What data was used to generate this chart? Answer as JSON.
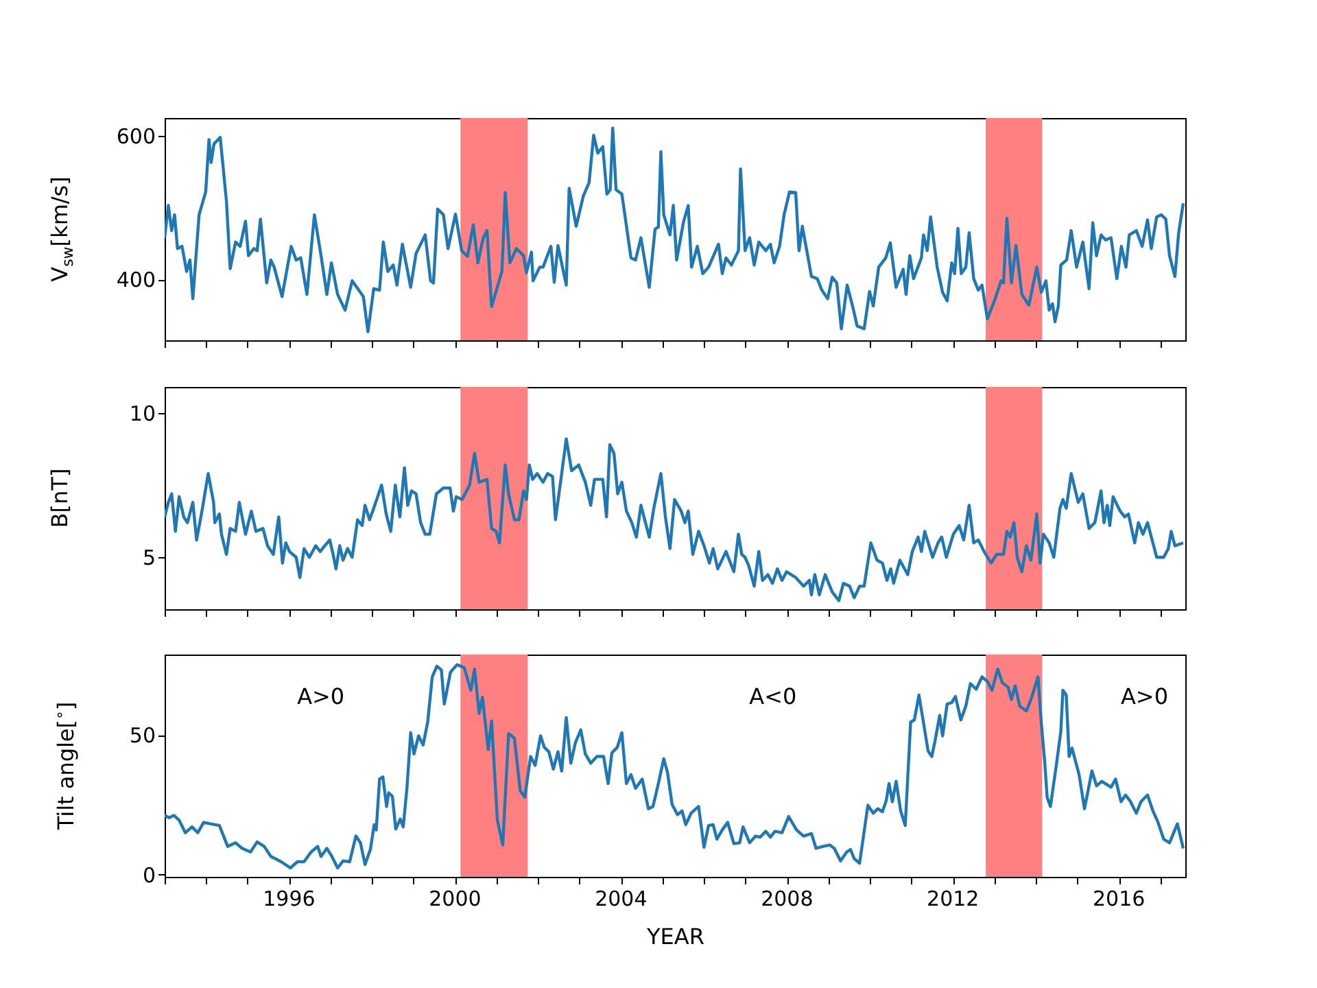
{
  "chart_data": [
    {
      "type": "line",
      "ylabel": "V$_{sw}$[km/s]",
      "xlim": [
        1993,
        2017.6
      ],
      "ylim": [
        315,
        625
      ],
      "yticks": [
        400,
        600
      ],
      "tick_labels": "y",
      "xticks": [
        {
          "value": 1993,
          "label": null
        },
        {
          "value": 1994,
          "label": null
        },
        {
          "value": 1995,
          "label": null
        },
        {
          "value": 1996,
          "label": null
        },
        {
          "value": 1997,
          "label": null
        },
        {
          "value": 1998,
          "label": null
        },
        {
          "value": 1999,
          "label": null
        },
        {
          "value": 2000,
          "label": null
        },
        {
          "value": 2001,
          "label": null
        },
        {
          "value": 2002,
          "label": null
        },
        {
          "value": 2003,
          "label": null
        },
        {
          "value": 2004,
          "label": null
        },
        {
          "value": 2005,
          "label": null
        },
        {
          "value": 2006,
          "label": null
        },
        {
          "value": 2007,
          "label": null
        },
        {
          "value": 2008,
          "label": null
        },
        {
          "value": 2009,
          "label": null
        },
        {
          "value": 2010,
          "label": null
        },
        {
          "value": 2011,
          "label": null
        },
        {
          "value": 2012,
          "label": null
        },
        {
          "value": 2013,
          "label": null
        },
        {
          "value": 2014,
          "label": null
        },
        {
          "value": 2015,
          "label": null
        },
        {
          "value": 2016,
          "label": null
        },
        {
          "value": 2017,
          "label": null
        }
      ],
      "bands": [
        {
          "axis": "x",
          "from": 2000.13,
          "to": 2001.75,
          "color": "#ff8080"
        },
        {
          "axis": "x",
          "from": 2012.79,
          "to": 2014.15,
          "color": "#ff8080"
        }
      ],
      "series": [
        {
          "color": "#1f77b4",
          "x": [
            1993.0,
            1993.09,
            1993.17,
            1993.24,
            1993.31,
            1993.42,
            1993.53,
            1993.61,
            1993.68,
            1993.83,
            1993.99,
            1994.07,
            1994.12,
            1994.19,
            1994.34,
            1994.49,
            1994.58,
            1994.71,
            1994.82,
            1994.95,
            1995.02,
            1995.15,
            1995.23,
            1995.31,
            1995.46,
            1995.56,
            1995.64,
            1995.83,
            1996.05,
            1996.17,
            1996.28,
            1996.43,
            1996.61,
            1996.77,
            1996.91,
            1997.02,
            1997.17,
            1997.35,
            1997.52,
            1997.79,
            1997.9,
            1998.04,
            1998.18,
            1998.27,
            1998.38,
            1998.51,
            1998.6,
            1998.73,
            1998.93,
            1999.06,
            1999.28,
            1999.41,
            1999.48,
            1999.58,
            1999.72,
            1999.83,
            2000.01,
            2000.16,
            2000.3,
            2000.44,
            2000.55,
            2000.68,
            2000.77,
            2000.88,
            2001.13,
            2001.21,
            2001.32,
            2001.48,
            2001.65,
            2001.72,
            2001.84,
            2001.88,
            2002.04,
            2002.12,
            2002.31,
            2002.39,
            2002.48,
            2002.68,
            2002.75,
            2002.92,
            2003.09,
            2003.23,
            2003.34,
            2003.44,
            2003.56,
            2003.66,
            2003.74,
            2003.8,
            2003.88,
            2004.02,
            2004.24,
            2004.35,
            2004.48,
            2004.68,
            2004.82,
            2004.9,
            2004.96,
            2005.03,
            2005.18,
            2005.26,
            2005.34,
            2005.51,
            2005.62,
            2005.7,
            2005.84,
            2005.97,
            2006.11,
            2006.35,
            2006.44,
            2006.53,
            2006.66,
            2006.83,
            2006.88,
            2006.99,
            2007.1,
            2007.21,
            2007.32,
            2007.49,
            2007.6,
            2007.69,
            2007.82,
            2007.93,
            2008.06,
            2008.21,
            2008.29,
            2008.37,
            2008.59,
            2008.73,
            2008.84,
            2008.98,
            2009.09,
            2009.2,
            2009.31,
            2009.45,
            2009.58,
            2009.69,
            2009.86,
            2009.99,
            2010.08,
            2010.21,
            2010.38,
            2010.49,
            2010.63,
            2010.8,
            2010.87,
            2010.96,
            2011.05,
            2011.24,
            2011.29,
            2011.38,
            2011.46,
            2011.62,
            2011.75,
            2011.86,
            2011.97,
            2012.04,
            2012.12,
            2012.2,
            2012.31,
            2012.39,
            2012.5,
            2012.61,
            2012.7,
            2012.83,
            2013.0,
            2013.16,
            2013.22,
            2013.3,
            2013.41,
            2013.52,
            2013.66,
            2013.83,
            2014.02,
            2014.13,
            2014.24,
            2014.32,
            2014.4,
            2014.46,
            2014.54,
            2014.6,
            2014.74,
            2014.85,
            2014.98,
            2015.13,
            2015.28,
            2015.37,
            2015.46,
            2015.57,
            2015.68,
            2015.81,
            2015.95,
            2016.06,
            2016.17,
            2016.25,
            2016.42,
            2016.56,
            2016.69,
            2016.78,
            2016.91,
            2017.02,
            2017.13,
            2017.22,
            2017.35,
            2017.44,
            2017.55
          ],
          "values": [
            458,
            503,
            468,
            490,
            443,
            446,
            411,
            427,
            373,
            490,
            522,
            595,
            563,
            589,
            598,
            509,
            415,
            452,
            446,
            481,
            433,
            443,
            440,
            484,
            395,
            427,
            417,
            376,
            446,
            427,
            430,
            379,
            490,
            433,
            379,
            423,
            379,
            357,
            398,
            376,
            327,
            387,
            385,
            452,
            411,
            420,
            392,
            449,
            389,
            436,
            462,
            398,
            395,
            498,
            490,
            443,
            491,
            440,
            432,
            476,
            423,
            458,
            468,
            362,
            411,
            521,
            423,
            443,
            433,
            409,
            438,
            398,
            417,
            417,
            446,
            396,
            447,
            392,
            527,
            474,
            516,
            535,
            601,
            576,
            585,
            519,
            525,
            611,
            525,
            519,
            430,
            427,
            458,
            389,
            470,
            473,
            578,
            490,
            462,
            503,
            427,
            481,
            503,
            417,
            446,
            408,
            417,
            449,
            408,
            430,
            420,
            440,
            554,
            440,
            458,
            420,
            452,
            440,
            449,
            423,
            446,
            490,
            522,
            521,
            440,
            474,
            404,
            401,
            385,
            373,
            403,
            395,
            331,
            392,
            363,
            335,
            331,
            383,
            363,
            417,
            430,
            451,
            389,
            414,
            379,
            433,
            401,
            430,
            462,
            440,
            487,
            417,
            382,
            370,
            423,
            408,
            471,
            408,
            417,
            465,
            401,
            385,
            392,
            345,
            370,
            398,
            395,
            485,
            395,
            447,
            379,
            364,
            417,
            382,
            398,
            357,
            366,
            341,
            363,
            420,
            427,
            468,
            417,
            452,
            387,
            479,
            433,
            462,
            455,
            458,
            401,
            446,
            417,
            462,
            468,
            446,
            483,
            443,
            487,
            490,
            484,
            433,
            404,
            465,
            506
          ]
        }
      ]
    },
    {
      "type": "line",
      "ylabel": "B[nT]",
      "xlim": [
        1993,
        2017.6
      ],
      "ylim": [
        3.2,
        10.9
      ],
      "yticks": [
        5,
        10
      ],
      "tick_labels": "y",
      "xticks": [
        {
          "value": 1993,
          "label": null
        },
        {
          "value": 1994,
          "label": null
        },
        {
          "value": 1995,
          "label": null
        },
        {
          "value": 1996,
          "label": null
        },
        {
          "value": 1997,
          "label": null
        },
        {
          "value": 1998,
          "label": null
        },
        {
          "value": 1999,
          "label": null
        },
        {
          "value": 2000,
          "label": null
        },
        {
          "value": 2001,
          "label": null
        },
        {
          "value": 2002,
          "label": null
        },
        {
          "value": 2003,
          "label": null
        },
        {
          "value": 2004,
          "label": null
        },
        {
          "value": 2005,
          "label": null
        },
        {
          "value": 2006,
          "label": null
        },
        {
          "value": 2007,
          "label": null
        },
        {
          "value": 2008,
          "label": null
        },
        {
          "value": 2009,
          "label": null
        },
        {
          "value": 2010,
          "label": null
        },
        {
          "value": 2011,
          "label": null
        },
        {
          "value": 2012,
          "label": null
        },
        {
          "value": 2013,
          "label": null
        },
        {
          "value": 2014,
          "label": null
        },
        {
          "value": 2015,
          "label": null
        },
        {
          "value": 2016,
          "label": null
        },
        {
          "value": 2017,
          "label": null
        }
      ],
      "bands": [
        {
          "axis": "x",
          "from": 2000.13,
          "to": 2001.75,
          "color": "#ff8080"
        },
        {
          "axis": "x",
          "from": 2012.79,
          "to": 2014.15,
          "color": "#ff8080"
        }
      ],
      "series": [
        {
          "color": "#1f77b4",
          "x": [
            1993.0,
            1993.09,
            1993.17,
            1993.26,
            1993.35,
            1993.46,
            1993.55,
            1993.68,
            1993.77,
            1993.9,
            1994.05,
            1994.18,
            1994.21,
            1994.32,
            1994.37,
            1994.49,
            1994.58,
            1994.71,
            1994.8,
            1994.95,
            1995.09,
            1995.2,
            1995.37,
            1995.48,
            1995.62,
            1995.75,
            1995.84,
            1995.92,
            1996.01,
            1996.17,
            1996.26,
            1996.36,
            1996.49,
            1996.64,
            1996.75,
            1996.86,
            1996.98,
            1997.06,
            1997.13,
            1997.22,
            1997.3,
            1997.41,
            1997.52,
            1997.65,
            1997.76,
            1997.83,
            1997.94,
            1998.04,
            1998.23,
            1998.34,
            1998.45,
            1998.56,
            1998.67,
            1998.78,
            1998.86,
            1998.95,
            1999.06,
            1999.17,
            1999.28,
            1999.39,
            1999.55,
            1999.72,
            1999.88,
            1999.96,
            2000.03,
            2000.17,
            2000.35,
            2000.47,
            2000.58,
            2000.77,
            2000.88,
            2000.99,
            2001.07,
            2001.21,
            2001.29,
            2001.43,
            2001.54,
            2001.65,
            2001.72,
            2001.79,
            2001.87,
            2001.98,
            2002.12,
            2002.23,
            2002.35,
            2002.42,
            2002.57,
            2002.68,
            2002.81,
            2002.98,
            2003.14,
            2003.27,
            2003.36,
            2003.56,
            2003.65,
            2003.73,
            2003.83,
            2003.92,
            2004.02,
            2004.13,
            2004.26,
            2004.37,
            2004.48,
            2004.68,
            2004.79,
            2004.96,
            2005.07,
            2005.18,
            2005.29,
            2005.45,
            2005.54,
            2005.62,
            2005.73,
            2005.87,
            2006.0,
            2006.13,
            2006.22,
            2006.33,
            2006.53,
            2006.72,
            2006.83,
            2006.91,
            2006.99,
            2007.08,
            2007.21,
            2007.32,
            2007.41,
            2007.54,
            2007.65,
            2007.77,
            2007.88,
            2007.99,
            2008.21,
            2008.4,
            2008.54,
            2008.59,
            2008.67,
            2008.78,
            2008.92,
            2009.09,
            2009.25,
            2009.36,
            2009.51,
            2009.62,
            2009.75,
            2009.86,
            2010.02,
            2010.17,
            2010.3,
            2010.41,
            2010.5,
            2010.57,
            2010.72,
            2010.91,
            2011.02,
            2011.16,
            2011.24,
            2011.32,
            2011.51,
            2011.64,
            2011.73,
            2011.84,
            2012.01,
            2012.15,
            2012.26,
            2012.39,
            2012.5,
            2012.61,
            2012.75,
            2012.92,
            2013.05,
            2013.22,
            2013.3,
            2013.38,
            2013.47,
            2013.55,
            2013.66,
            2013.77,
            2013.88,
            2014.02,
            2014.1,
            2014.18,
            2014.32,
            2014.43,
            2014.58,
            2014.65,
            2014.73,
            2014.85,
            2015.02,
            2015.13,
            2015.28,
            2015.42,
            2015.57,
            2015.64,
            2015.72,
            2015.78,
            2015.86,
            2016.03,
            2016.14,
            2016.23,
            2016.38,
            2016.47,
            2016.58,
            2016.69,
            2016.91,
            2017.08,
            2017.19,
            2017.26,
            2017.35,
            2017.55
          ],
          "values": [
            6.4,
            6.9,
            7.2,
            5.9,
            7.1,
            6.4,
            6.2,
            6.9,
            5.6,
            6.6,
            7.9,
            6.9,
            6.2,
            6.5,
            5.8,
            5.1,
            6.0,
            5.9,
            6.9,
            5.8,
            6.6,
            5.9,
            6.0,
            5.4,
            5.1,
            6.4,
            4.8,
            5.5,
            5.2,
            5.0,
            4.3,
            5.3,
            5.0,
            5.4,
            5.2,
            5.4,
            5.6,
            5.1,
            4.6,
            5.4,
            4.9,
            5.3,
            5.0,
            6.3,
            6.1,
            6.8,
            6.3,
            6.7,
            7.5,
            6.5,
            5.9,
            7.5,
            6.4,
            8.1,
            6.8,
            7.3,
            7.2,
            6.2,
            5.8,
            5.8,
            7.2,
            7.4,
            7.4,
            6.6,
            7.1,
            7.0,
            7.5,
            8.6,
            7.6,
            7.7,
            6.0,
            5.9,
            5.5,
            8.2,
            7.2,
            6.3,
            6.3,
            7.3,
            7.0,
            8.2,
            7.7,
            7.9,
            7.6,
            7.9,
            7.8,
            6.3,
            7.9,
            9.1,
            8.0,
            8.2,
            7.6,
            6.8,
            7.7,
            7.7,
            6.4,
            8.9,
            8.6,
            7.2,
            7.6,
            6.6,
            6.2,
            5.7,
            6.8,
            5.7,
            6.7,
            7.9,
            6.4,
            5.3,
            7.0,
            6.6,
            6.2,
            6.6,
            5.1,
            5.9,
            5.4,
            4.8,
            5.3,
            4.6,
            5.2,
            4.5,
            5.8,
            5.1,
            5.0,
            4.7,
            4.0,
            5.2,
            4.2,
            4.4,
            4.1,
            4.6,
            4.2,
            4.5,
            4.3,
            4.0,
            4.2,
            3.7,
            4.4,
            3.7,
            4.4,
            3.8,
            3.5,
            4.1,
            4.0,
            3.6,
            4.0,
            4.0,
            5.5,
            4.9,
            4.8,
            4.2,
            4.6,
            4.1,
            4.9,
            4.4,
            5.2,
            5.7,
            5.2,
            5.9,
            5.0,
            5.5,
            5.7,
            5.0,
            5.8,
            6.1,
            5.6,
            6.8,
            5.5,
            5.6,
            5.2,
            4.8,
            5.1,
            5.1,
            5.9,
            5.7,
            6.2,
            5.0,
            4.5,
            5.4,
            4.9,
            6.5,
            4.8,
            5.8,
            5.5,
            5.0,
            6.7,
            7.0,
            6.7,
            7.9,
            6.9,
            7.2,
            6.0,
            6.2,
            7.3,
            6.2,
            6.8,
            6.1,
            7.1,
            6.6,
            6.4,
            6.5,
            5.5,
            6.2,
            5.8,
            6.2,
            5.0,
            5.0,
            5.3,
            5.9,
            5.4,
            5.5
          ]
        }
      ]
    },
    {
      "type": "line",
      "ylabel": "Tilt angle[$^{∘}$]",
      "xlabel": "YEAR",
      "xlim": [
        1993,
        2017.6
      ],
      "ylim": [
        -0.8,
        78.8
      ],
      "yticks": [
        0,
        50
      ],
      "xticks": [
        {
          "value": 1993,
          "label": null
        },
        {
          "value": 1994,
          "label": null
        },
        {
          "value": 1995,
          "label": null
        },
        1996,
        {
          "value": 1997,
          "label": null
        },
        {
          "value": 1998,
          "label": null
        },
        {
          "value": 1999,
          "label": null
        },
        2000,
        {
          "value": 2001,
          "label": null
        },
        {
          "value": 2002,
          "label": null
        },
        {
          "value": 2003,
          "label": null
        },
        2004,
        {
          "value": 2005,
          "label": null
        },
        {
          "value": 2006,
          "label": null
        },
        {
          "value": 2007,
          "label": null
        },
        2008,
        {
          "value": 2009,
          "label": null
        },
        {
          "value": 2010,
          "label": null
        },
        {
          "value": 2011,
          "label": null
        },
        2012,
        {
          "value": 2013,
          "label": null
        },
        {
          "value": 2014,
          "label": null
        },
        {
          "value": 2015,
          "label": null
        },
        2016,
        {
          "value": 2017,
          "label": null
        }
      ],
      "bands": [
        {
          "axis": "x",
          "from": 2000.13,
          "to": 2001.75,
          "color": "#ff8080"
        },
        {
          "axis": "x",
          "from": 2012.79,
          "to": 2014.15,
          "color": "#ff8080"
        }
      ],
      "annotations": [
        "A>0",
        "A<0",
        "A>0"
      ],
      "series": [
        {
          "color": "#1f77b4",
          "x": [
            1993.0,
            1993.11,
            1993.22,
            1993.35,
            1993.5,
            1993.66,
            1993.8,
            1993.94,
            1994.1,
            1994.32,
            1994.52,
            1994.71,
            1994.87,
            1995.07,
            1995.23,
            1995.4,
            1995.56,
            1995.81,
            1996.03,
            1996.2,
            1996.36,
            1996.53,
            1996.69,
            1996.77,
            1996.91,
            1997.02,
            1997.17,
            1997.3,
            1997.46,
            1997.61,
            1997.72,
            1997.83,
            1997.96,
            1998.05,
            1998.1,
            1998.18,
            1998.26,
            1998.35,
            1998.4,
            1998.49,
            1998.57,
            1998.68,
            1998.75,
            1998.84,
            1998.93,
            1999.01,
            1999.12,
            1999.23,
            1999.34,
            1999.45,
            1999.56,
            1999.67,
            1999.74,
            1999.89,
            2000.05,
            2000.22,
            2000.38,
            2000.47,
            2000.58,
            2000.66,
            2000.8,
            2000.88,
            2001.02,
            2001.15,
            2001.29,
            2001.43,
            2001.57,
            2001.68,
            2001.82,
            2001.93,
            2002.06,
            2002.15,
            2002.26,
            2002.37,
            2002.48,
            2002.57,
            2002.68,
            2002.79,
            2002.9,
            2003.03,
            2003.14,
            2003.27,
            2003.42,
            2003.58,
            2003.69,
            2003.78,
            2003.91,
            2004.02,
            2004.13,
            2004.24,
            2004.35,
            2004.51,
            2004.66,
            2004.77,
            2004.9,
            2005.03,
            2005.12,
            2005.23,
            2005.36,
            2005.47,
            2005.56,
            2005.69,
            2005.87,
            2006.0,
            2006.11,
            2006.22,
            2006.31,
            2006.44,
            2006.57,
            2006.72,
            2006.86,
            2006.94,
            2007.1,
            2007.24,
            2007.35,
            2007.49,
            2007.6,
            2007.71,
            2007.88,
            2008.04,
            2008.23,
            2008.4,
            2008.59,
            2008.7,
            2008.87,
            2009.03,
            2009.14,
            2009.29,
            2009.44,
            2009.53,
            2009.62,
            2009.75,
            2009.95,
            2010.08,
            2010.19,
            2010.3,
            2010.39,
            2010.46,
            2010.54,
            2010.63,
            2010.74,
            2010.85,
            2010.98,
            2011.07,
            2011.18,
            2011.27,
            2011.4,
            2011.49,
            2011.57,
            2011.68,
            2011.75,
            2011.86,
            2011.97,
            2012.06,
            2012.19,
            2012.31,
            2012.42,
            2012.56,
            2012.7,
            2012.83,
            2012.94,
            2013.08,
            2013.19,
            2013.33,
            2013.41,
            2013.5,
            2013.61,
            2013.77,
            2013.88,
            2014.05,
            2014.13,
            2014.21,
            2014.27,
            2014.35,
            2014.49,
            2014.6,
            2014.65,
            2014.73,
            2014.8,
            2014.87,
            2015.04,
            2015.17,
            2015.35,
            2015.46,
            2015.59,
            2015.81,
            2015.92,
            2016.05,
            2016.16,
            2016.27,
            2016.42,
            2016.53,
            2016.69,
            2016.82,
            2016.93,
            2017.08,
            2017.22,
            2017.41,
            2017.55
          ],
          "values": [
            21.2,
            20.4,
            21.2,
            19.5,
            15.0,
            17.1,
            15.0,
            18.7,
            18.2,
            17.6,
            10.1,
            11.4,
            9.4,
            8.1,
            11.7,
            10.1,
            6.5,
            4.6,
            2.4,
            4.6,
            4.6,
            8.1,
            10.1,
            6.5,
            9.4,
            6.8,
            2.4,
            4.9,
            4.6,
            13.8,
            11.4,
            3.6,
            9.0,
            17.9,
            16.0,
            34.2,
            35.0,
            24.4,
            29.3,
            28.0,
            16.3,
            19.9,
            17.1,
            30.9,
            50.8,
            43.2,
            49.7,
            46.4,
            54.6,
            70.8,
            74.6,
            73.3,
            61.1,
            72.5,
            75.2,
            74.1,
            66.0,
            73.6,
            57.8,
            63.5,
            44.8,
            55.0,
            19.5,
            10.6,
            50.5,
            48.9,
            30.1,
            27.7,
            42.3,
            39.1,
            49.7,
            45.6,
            44.0,
            37.8,
            44.0,
            37.1,
            56.2,
            39.9,
            47.2,
            51.8,
            43.2,
            39.9,
            42.3,
            42.3,
            32.6,
            43.6,
            45.6,
            50.8,
            32.6,
            35.8,
            30.9,
            34.2,
            23.6,
            24.4,
            32.6,
            41.5,
            36.6,
            25.2,
            21.5,
            22.8,
            17.9,
            22.0,
            24.4,
            9.8,
            17.6,
            17.9,
            12.7,
            16.0,
            18.7,
            11.1,
            11.4,
            17.1,
            11.4,
            13.8,
            13.4,
            15.5,
            13.4,
            15.5,
            15.0,
            20.8,
            16.0,
            13.8,
            14.7,
            9.4,
            10.1,
            10.6,
            9.4,
            4.9,
            8.1,
            9.0,
            5.7,
            4.1,
            24.8,
            22.0,
            23.6,
            22.5,
            26.4,
            32.6,
            26.1,
            33.4,
            22.8,
            17.6,
            54.6,
            55.4,
            64.3,
            56.2,
            44.3,
            42.3,
            48.0,
            57.0,
            49.7,
            61.1,
            61.6,
            63.8,
            55.4,
            60.3,
            68.4,
            66.4,
            70.8,
            69.2,
            66.0,
            73.6,
            68.7,
            67.1,
            62.7,
            67.6,
            60.3,
            58.6,
            62.7,
            70.8,
            54.1,
            40.7,
            27.7,
            24.4,
            39.1,
            51.3,
            66.0,
            64.3,
            42.3,
            45.3,
            35.8,
            23.6,
            37.1,
            31.8,
            33.4,
            31.3,
            34.2,
            26.1,
            28.5,
            26.4,
            22.0,
            26.1,
            28.5,
            22.8,
            19.2,
            12.7,
            11.4,
            18.2,
            9.4
          ]
        }
      ]
    }
  ]
}
